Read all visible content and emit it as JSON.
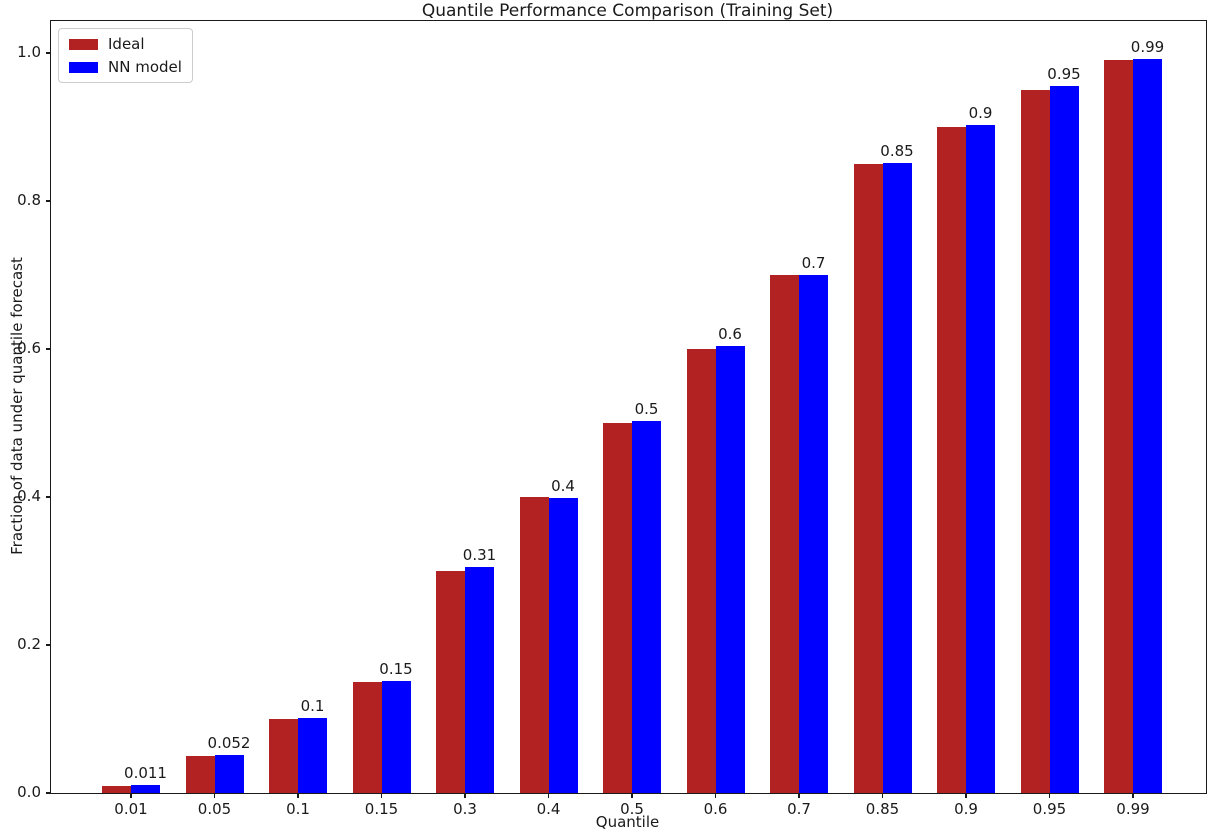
{
  "figure": {
    "title": "Quantile Performance Comparison (Training Set)",
    "xlabel": "Quantile",
    "ylabel": "Fraction of data under quantile forecast"
  },
  "legend": {
    "items": [
      {
        "label": "Ideal",
        "color": "#B22222"
      },
      {
        "label": "NN model",
        "color": "#0000FF"
      }
    ]
  },
  "chart_data": {
    "type": "bar",
    "title": "Quantile Performance Comparison (Training Set)",
    "xlabel": "Quantile",
    "ylabel": "Fraction of data under quantile forecast",
    "categories": [
      "0.01",
      "0.05",
      "0.1",
      "0.15",
      "0.3",
      "0.4",
      "0.5",
      "0.6",
      "0.7",
      "0.85",
      "0.9",
      "0.95",
      "0.99"
    ],
    "series": [
      {
        "name": "Ideal",
        "color": "#B22222",
        "values": [
          0.01,
          0.05,
          0.1,
          0.15,
          0.3,
          0.4,
          0.5,
          0.6,
          0.7,
          0.85,
          0.9,
          0.95,
          0.99
        ]
      },
      {
        "name": "NN model",
        "color": "#0000FF",
        "values": [
          0.011,
          0.052,
          0.102,
          0.152,
          0.306,
          0.398,
          0.503,
          0.604,
          0.7,
          0.851,
          0.903,
          0.955,
          0.992
        ],
        "bar_labels": [
          "0.011",
          "0.052",
          "0.1",
          "0.15",
          "0.31",
          "0.4",
          "0.5",
          "0.6",
          "0.7",
          "0.85",
          "0.9",
          "0.95",
          "0.99"
        ]
      }
    ],
    "yticks": [
      "0.0",
      "0.2",
      "0.4",
      "0.6",
      "0.8",
      "1.0"
    ],
    "ylim": [
      0,
      1.043
    ],
    "grid": false,
    "legend_position": "upper-left",
    "bar_label_series": "NN model"
  }
}
